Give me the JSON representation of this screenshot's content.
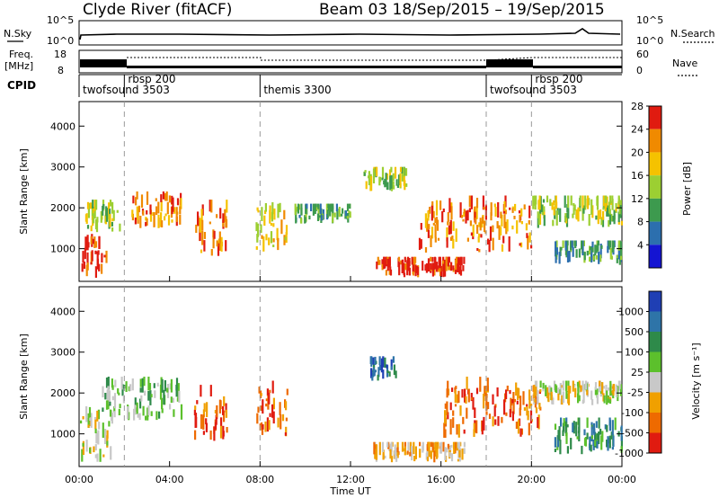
{
  "header": {
    "station": "Clyde River (fitACF)",
    "beam_and_dates": "Beam 03  18/Sep/2015 – 19/Sep/2015"
  },
  "summary_panels": {
    "nsky_label": "N.Sky",
    "nsearch_label": "N.Search",
    "nsky_ticks": [
      "10^5",
      "10^0"
    ],
    "nsearch_ticks": [
      "10^5",
      "10^0"
    ],
    "freq_label_1": "Freq.",
    "freq_label_2": "[MHz]",
    "freq_ticks": [
      "18",
      "8"
    ],
    "nave_label": "Nave",
    "nave_ticks": [
      "60",
      "0"
    ],
    "cpid_label": "CPID"
  },
  "cpid_segments": [
    {
      "label": "twofsound 3503",
      "start_hour": 0.0,
      "end_hour": 2.0
    },
    {
      "label": "rbsp 200",
      "start_hour": 2.0,
      "end_hour": 8.0
    },
    {
      "label": "themis 3300",
      "start_hour": 8.0,
      "end_hour": 18.0
    },
    {
      "label": "twofsound 3503",
      "start_hour": 18.0,
      "end_hour": 20.0
    },
    {
      "label": "rbsp 200",
      "start_hour": 20.0,
      "end_hour": 24.0
    }
  ],
  "time_axis": {
    "label": "Time UT",
    "ticks": [
      "00:00",
      "04:00",
      "08:00",
      "12:00",
      "16:00",
      "20:00",
      "00:00"
    ]
  },
  "chart_data": [
    {
      "type": "heatmap",
      "quantity": "Power",
      "colorbar_label": "Power [dB]",
      "colorbar_ticks": [
        "4",
        "8",
        "12",
        "16",
        "20",
        "24",
        "28"
      ],
      "colors": [
        "#1414d2",
        "#2c6fae",
        "#3d9a4e",
        "#9ccf32",
        "#f5c200",
        "#f08a00",
        "#e01b10"
      ],
      "ylabel": "Slant Range [km]",
      "yticks": [
        "1000",
        "2000",
        "3000",
        "4000"
      ],
      "ylim": [
        200,
        4600
      ],
      "xlim_hours": [
        0,
        24
      ],
      "xlabel": "",
      "blobs": [
        {
          "t0": 0.0,
          "t1": 1.2,
          "r0": 200,
          "r1": 1400,
          "level": 6
        },
        {
          "t0": 0.2,
          "t1": 1.8,
          "r0": 1400,
          "r1": 2200,
          "level": 3
        },
        {
          "t0": 2.3,
          "t1": 4.5,
          "r0": 1500,
          "r1": 2400,
          "level": 5
        },
        {
          "t0": 5.0,
          "t1": 6.5,
          "r0": 800,
          "r1": 2200,
          "level": 5
        },
        {
          "t0": 7.8,
          "t1": 9.2,
          "r0": 900,
          "r1": 2300,
          "level": 4
        },
        {
          "t0": 9.5,
          "t1": 12.0,
          "r0": 1600,
          "r1": 2100,
          "level": 2
        },
        {
          "t0": 12.5,
          "t1": 14.5,
          "r0": 2400,
          "r1": 3000,
          "level": 3
        },
        {
          "t0": 13.0,
          "t1": 17.0,
          "r0": 300,
          "r1": 800,
          "level": 6
        },
        {
          "t0": 15.0,
          "t1": 20.0,
          "r0": 900,
          "r1": 2300,
          "level": 5
        },
        {
          "t0": 20.0,
          "t1": 24.0,
          "r0": 1500,
          "r1": 2300,
          "level": 3
        },
        {
          "t0": 21.0,
          "t1": 24.0,
          "r0": 600,
          "r1": 1200,
          "level": 2
        }
      ]
    },
    {
      "type": "heatmap",
      "quantity": "Velocity",
      "colorbar_label": "Velocity [m s⁻¹]",
      "colorbar_ticks": [
        "1000",
        "500",
        "100",
        "25",
        "-25",
        "-100",
        "-500",
        "-1000"
      ],
      "colors": [
        "#1f3fb4",
        "#2e74a8",
        "#2e8a4a",
        "#5cc02c",
        "#c8c8c8",
        "#f0a000",
        "#ee6a00",
        "#e01b10"
      ],
      "ylabel": "Slant Range [km]",
      "yticks": [
        "1000",
        "2000",
        "3000",
        "4000"
      ],
      "ylim": [
        200,
        4600
      ],
      "xlim_hours": [
        0,
        24
      ],
      "xlabel": "Time UT",
      "blobs": [
        {
          "t0": 0.0,
          "t1": 1.5,
          "r0": 300,
          "r1": 1700,
          "level": 4
        },
        {
          "t0": 1.0,
          "t1": 4.5,
          "r0": 1300,
          "r1": 2400,
          "level": 3
        },
        {
          "t0": 5.0,
          "t1": 6.5,
          "r0": 800,
          "r1": 2200,
          "level": 6
        },
        {
          "t0": 7.8,
          "t1": 9.2,
          "r0": 900,
          "r1": 2300,
          "level": 6
        },
        {
          "t0": 12.8,
          "t1": 14.0,
          "r0": 2300,
          "r1": 2900,
          "level": 1
        },
        {
          "t0": 13.0,
          "t1": 17.0,
          "r0": 300,
          "r1": 800,
          "level": 5
        },
        {
          "t0": 16.0,
          "t1": 20.5,
          "r0": 900,
          "r1": 2400,
          "level": 6
        },
        {
          "t0": 20.0,
          "t1": 24.0,
          "r0": 1700,
          "r1": 2300,
          "level": 4
        },
        {
          "t0": 21.0,
          "t1": 24.0,
          "r0": 500,
          "r1": 1400,
          "level": 2
        }
      ]
    }
  ]
}
